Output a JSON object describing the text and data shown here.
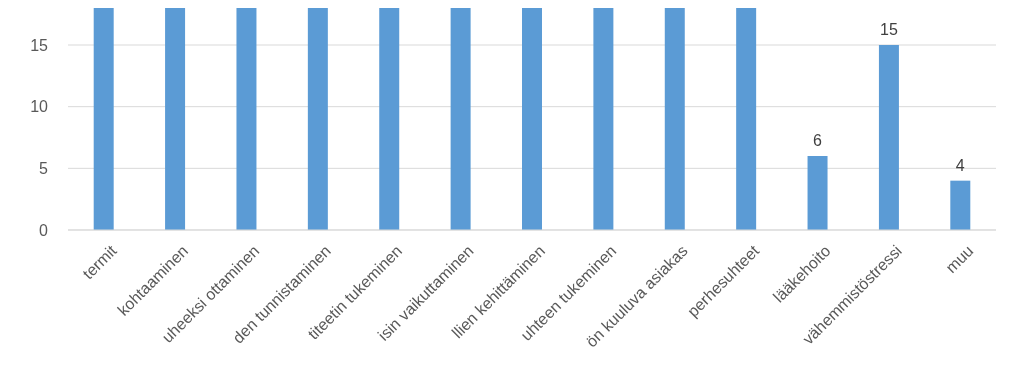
{
  "chart_data": {
    "type": "bar",
    "categories": [
      "termit",
      "kohtaaminen",
      "uheeksi ottaminen",
      "den tunnistaminen",
      "titeetin tukeminen",
      "isin vaikuttaminen",
      "llien kehittäminen",
      "uhteen tukeminen",
      "ön kuuluva asiakas",
      "perhesuhteet",
      "lääkehoito",
      "vähemmistöstressi",
      "muu"
    ],
    "values": [
      18,
      18,
      18,
      18,
      18,
      18,
      18,
      18,
      18,
      18,
      6,
      15,
      4
    ],
    "value_labels": [
      null,
      null,
      null,
      null,
      null,
      null,
      null,
      null,
      null,
      null,
      "6",
      "15",
      "4"
    ],
    "color": "#5b9bd5",
    "ylim": [
      0,
      18
    ],
    "yticks": [
      0,
      5,
      10,
      15
    ],
    "grid": "y"
  }
}
